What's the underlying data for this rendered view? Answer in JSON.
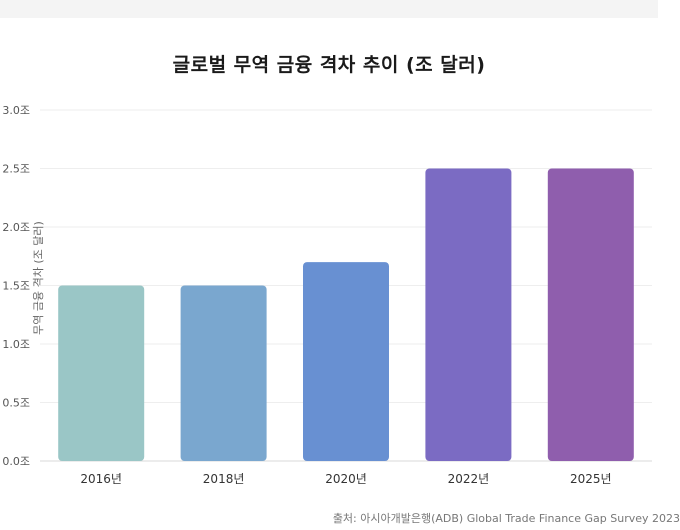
{
  "chart_data": {
    "type": "bar",
    "title": "글로벌 무역 금융 격차 추이 (조 달러)",
    "xlabel": "",
    "ylabel": "무역 금융 격차 (조 달러)",
    "categories": [
      "2016년",
      "2018년",
      "2020년",
      "2022년",
      "2025년"
    ],
    "values": [
      1.5,
      1.5,
      1.7,
      2.5,
      2.5
    ],
    "colors": [
      "#9ac6c6",
      "#7aa7cf",
      "#6890d2",
      "#7b6bc3",
      "#8f5ead"
    ],
    "ylim": [
      0,
      3.0
    ],
    "yticks": [
      0,
      0.5,
      1.0,
      1.5,
      2.0,
      2.5,
      3.0
    ],
    "ytick_labels": [
      "0.0조",
      "0.5조",
      "1.0조",
      "1.5조",
      "2.0조",
      "2.5조",
      "3.0조"
    ],
    "grid": true,
    "source": "출처: 아시아개발은행(ADB) Global Trade Finance Gap Survey 2023"
  }
}
